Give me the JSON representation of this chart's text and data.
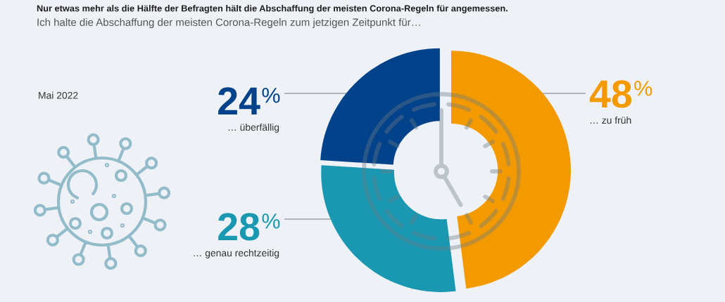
{
  "chart_data": {
    "type": "donut",
    "title": "Nur etwas mehr als die Hälfte der Befragten hält die Abschaffung der meisten Corona-Regeln für angemessen.",
    "subtitle": "Ich halte die Abschaffung der meisten Corona-Regeln zum jetzigen Zeitpunkt für…",
    "categories": [
      "… zu früh",
      "… genau rechtzeitig",
      "… überfällig"
    ],
    "values": [
      48,
      28,
      24
    ],
    "colors": [
      "#f39a00",
      "#1a98b2",
      "#02428a"
    ],
    "value_labels": [
      "48$^{%}$",
      "28$^{%}$",
      "24$^{%}$"
    ],
    "annotations": [
      "Mai 2022"
    ]
  }
}
